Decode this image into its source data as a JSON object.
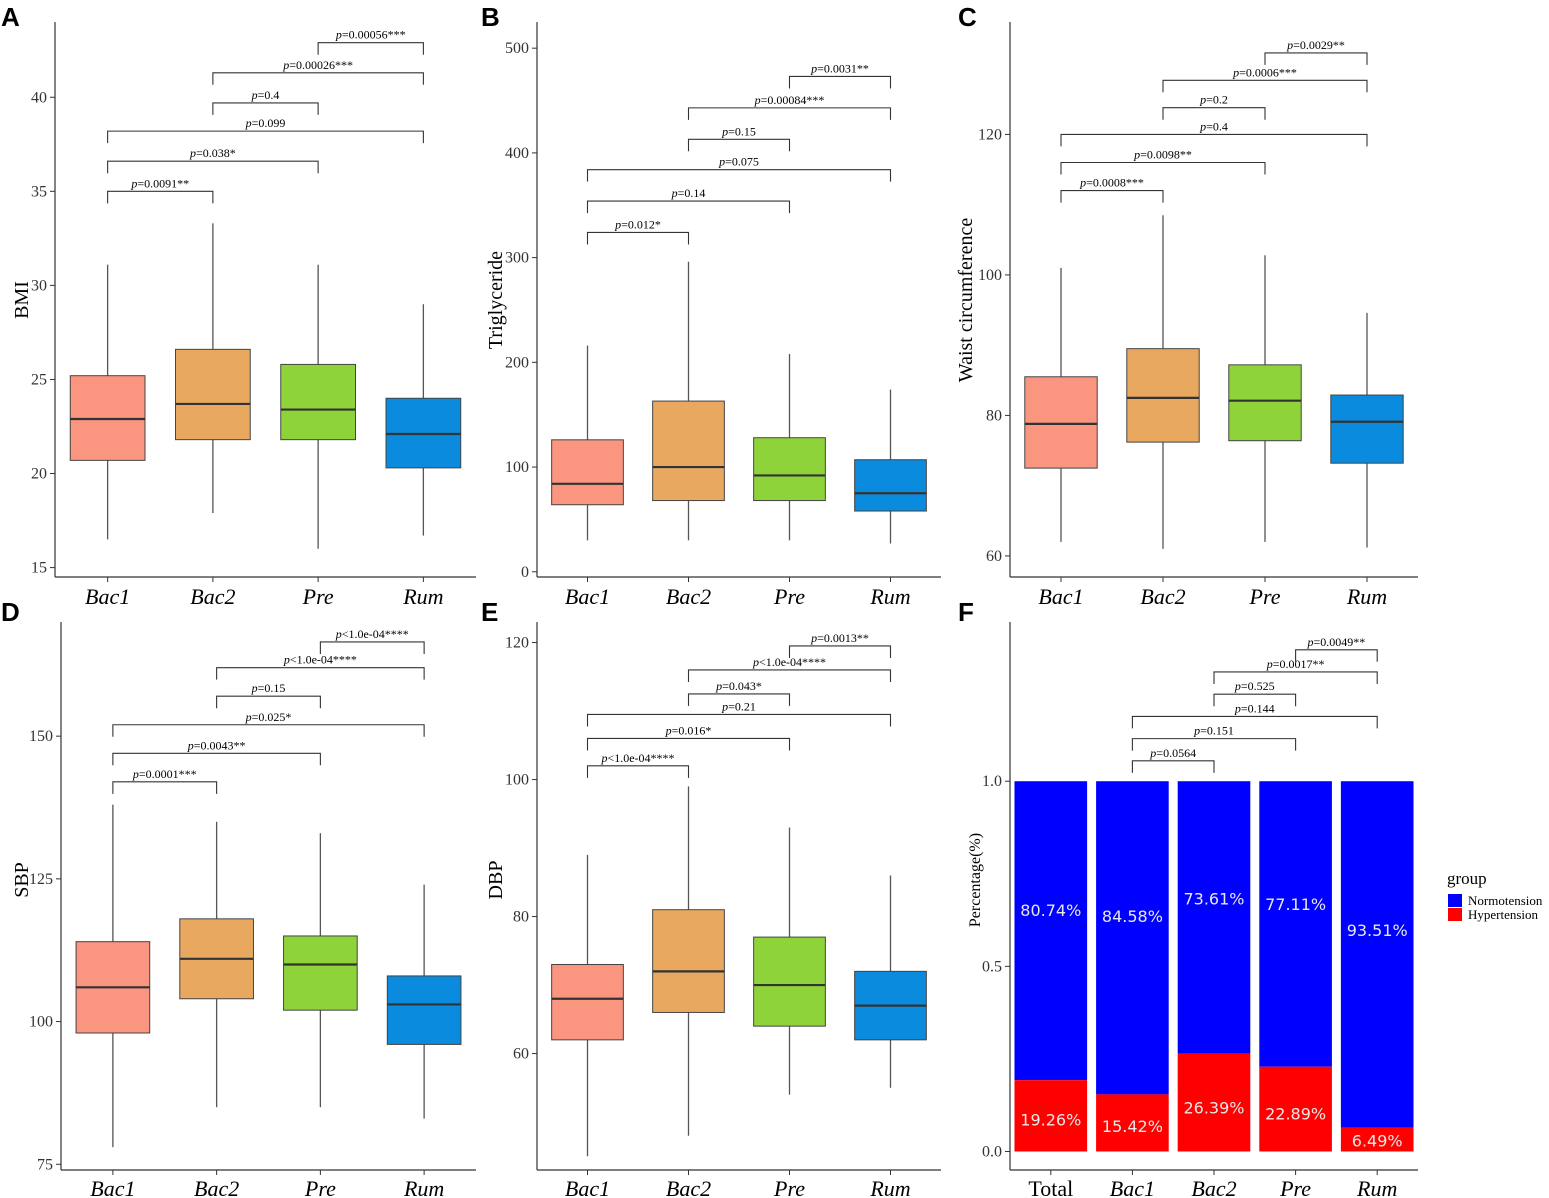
{
  "chart_data": [
    {
      "panel": "A",
      "type": "box",
      "ylabel": "BMI",
      "ylim": [
        14.5,
        44
      ],
      "yticks": [
        15,
        20,
        25,
        30,
        35,
        40
      ],
      "categories": [
        "Bac1",
        "Bac2",
        "Pre",
        "Rum"
      ],
      "colors": [
        "#FA9580",
        "#E8A860",
        "#8FD33A",
        "#0A8BDD"
      ],
      "boxes": [
        {
          "min": 16.5,
          "q1": 20.7,
          "median": 22.9,
          "q3": 25.2,
          "max": 31.1
        },
        {
          "min": 17.9,
          "q1": 21.8,
          "median": 23.7,
          "q3": 26.6,
          "max": 33.3
        },
        {
          "min": 16.0,
          "q1": 21.8,
          "median": 23.4,
          "q3": 25.8,
          "max": 31.1
        },
        {
          "min": 16.7,
          "q1": 20.3,
          "median": 22.1,
          "q3": 24.0,
          "max": 29.0
        }
      ],
      "comparisons": [
        {
          "a": 0,
          "b": 1,
          "y": 35.0,
          "label": "=0.0091**"
        },
        {
          "a": 0,
          "b": 2,
          "y": 36.6,
          "label": "=0.038*"
        },
        {
          "a": 0,
          "b": 3,
          "y": 38.2,
          "label": "=0.099"
        },
        {
          "a": 1,
          "b": 2,
          "y": 39.7,
          "label": "=0.4"
        },
        {
          "a": 1,
          "b": 3,
          "y": 41.3,
          "label": "=0.00026***"
        },
        {
          "a": 2,
          "b": 3,
          "y": 42.9,
          "label": "=0.00056***"
        }
      ]
    },
    {
      "panel": "B",
      "type": "box",
      "ylabel": "Triglyceride",
      "ylim": [
        -5,
        525
      ],
      "yticks": [
        0,
        100,
        200,
        300,
        400,
        500
      ],
      "categories": [
        "Bac1",
        "Bac2",
        "Pre",
        "Rum"
      ],
      "colors": [
        "#FA9580",
        "#E8A860",
        "#8FD33A",
        "#0A8BDD"
      ],
      "boxes": [
        {
          "min": 30,
          "q1": 64,
          "median": 84,
          "q3": 126,
          "max": 216
        },
        {
          "min": 30,
          "q1": 68,
          "median": 100,
          "q3": 163,
          "max": 296
        },
        {
          "min": 30,
          "q1": 68,
          "median": 92,
          "q3": 128,
          "max": 208
        },
        {
          "min": 27,
          "q1": 58,
          "median": 75,
          "q3": 107,
          "max": 174
        }
      ],
      "comparisons": [
        {
          "a": 0,
          "b": 1,
          "y": 324,
          "label": "=0.012*"
        },
        {
          "a": 0,
          "b": 2,
          "y": 354,
          "label": "=0.14"
        },
        {
          "a": 0,
          "b": 3,
          "y": 384,
          "label": "=0.075"
        },
        {
          "a": 1,
          "b": 2,
          "y": 413,
          "label": "=0.15"
        },
        {
          "a": 1,
          "b": 3,
          "y": 443,
          "label": "=0.00084***"
        },
        {
          "a": 2,
          "b": 3,
          "y": 473,
          "label": "=0.0031**"
        }
      ]
    },
    {
      "panel": "C",
      "type": "box",
      "ylabel": "Waist circumference",
      "ylim": [
        57,
        136
      ],
      "yticks": [
        60,
        80,
        100,
        120
      ],
      "categories": [
        "Bac1",
        "Bac2",
        "Pre",
        "Rum"
      ],
      "colors": [
        "#FA9580",
        "#E8A860",
        "#8FD33A",
        "#0A8BDD"
      ],
      "boxes": [
        {
          "min": 62,
          "q1": 72.5,
          "median": 78.8,
          "q3": 85.5,
          "max": 101
        },
        {
          "min": 61,
          "q1": 76.2,
          "median": 82.5,
          "q3": 89.5,
          "max": 108.5
        },
        {
          "min": 62,
          "q1": 76.4,
          "median": 82.1,
          "q3": 87.2,
          "max": 102.8
        },
        {
          "min": 61.2,
          "q1": 73.2,
          "median": 79.1,
          "q3": 82.9,
          "max": 94.6
        }
      ],
      "comparisons": [
        {
          "a": 0,
          "b": 1,
          "y": 112.0,
          "label": "=0.0008***"
        },
        {
          "a": 0,
          "b": 2,
          "y": 116.0,
          "label": "=0.0098**"
        },
        {
          "a": 0,
          "b": 3,
          "y": 120.0,
          "label": "=0.4"
        },
        {
          "a": 1,
          "b": 2,
          "y": 123.8,
          "label": "=0.2"
        },
        {
          "a": 1,
          "b": 3,
          "y": 127.7,
          "label": "=0.0006***"
        },
        {
          "a": 2,
          "b": 3,
          "y": 131.6,
          "label": "=0.0029**"
        }
      ]
    },
    {
      "panel": "D",
      "type": "box",
      "ylabel": "SBP",
      "ylim": [
        74,
        170
      ],
      "yticks": [
        75,
        100,
        125,
        150
      ],
      "categories": [
        "Bac1",
        "Bac2",
        "Pre",
        "Rum"
      ],
      "colors": [
        "#FA9580",
        "#E8A860",
        "#8FD33A",
        "#0A8BDD"
      ],
      "boxes": [
        {
          "min": 78,
          "q1": 98,
          "median": 106,
          "q3": 114,
          "max": 138
        },
        {
          "min": 85,
          "q1": 104,
          "median": 111,
          "q3": 118,
          "max": 135
        },
        {
          "min": 85,
          "q1": 102,
          "median": 110,
          "q3": 115,
          "max": 133
        },
        {
          "min": 83,
          "q1": 96,
          "median": 103,
          "q3": 108,
          "max": 124
        }
      ],
      "comparisons": [
        {
          "a": 0,
          "b": 1,
          "y": 142.0,
          "label": "=0.0001***"
        },
        {
          "a": 0,
          "b": 2,
          "y": 147.0,
          "label": "=0.0043**"
        },
        {
          "a": 0,
          "b": 3,
          "y": 152.0,
          "label": "=0.025*"
        },
        {
          "a": 1,
          "b": 2,
          "y": 157.0,
          "label": "=0.15"
        },
        {
          "a": 1,
          "b": 3,
          "y": 162.0,
          "label": "<1.0e-04****"
        },
        {
          "a": 2,
          "b": 3,
          "y": 166.5,
          "label": "<1.0e-04****"
        }
      ]
    },
    {
      "panel": "E",
      "type": "box",
      "ylabel": "DBP",
      "ylim": [
        43,
        123
      ],
      "yticks": [
        60,
        80,
        100,
        120
      ],
      "categories": [
        "Bac1",
        "Bac2",
        "Pre",
        "Rum"
      ],
      "colors": [
        "#FA9580",
        "#E8A860",
        "#8FD33A",
        "#0A8BDD"
      ],
      "boxes": [
        {
          "min": 45,
          "q1": 62,
          "median": 68,
          "q3": 73,
          "max": 89
        },
        {
          "min": 48,
          "q1": 66,
          "median": 72,
          "q3": 81,
          "max": 99
        },
        {
          "min": 54,
          "q1": 64,
          "median": 70,
          "q3": 77,
          "max": 93
        },
        {
          "min": 55,
          "q1": 62,
          "median": 67,
          "q3": 72,
          "max": 86
        }
      ],
      "comparisons": [
        {
          "a": 0,
          "b": 1,
          "y": 102.0,
          "label": "<1.0e-04****"
        },
        {
          "a": 0,
          "b": 2,
          "y": 106.0,
          "label": "=0.016*"
        },
        {
          "a": 0,
          "b": 3,
          "y": 109.5,
          "label": "=0.21"
        },
        {
          "a": 1,
          "b": 2,
          "y": 112.5,
          "label": "=0.043*"
        },
        {
          "a": 1,
          "b": 3,
          "y": 116.0,
          "label": "<1.0e-04****"
        },
        {
          "a": 2,
          "b": 3,
          "y": 119.5,
          "label": "=0.0013**"
        }
      ]
    },
    {
      "panel": "F",
      "type": "stacked-bar",
      "ylabel": "Percentage(%)",
      "ylim": [
        -0.05,
        1.43
      ],
      "yticks": [
        0.0,
        0.5,
        1.0
      ],
      "ytick_labels": [
        "0.0",
        "0.5",
        "1.0"
      ],
      "categories": [
        "Total",
        "Bac1",
        "Bac2",
        "Pre",
        "Rum"
      ],
      "series": [
        {
          "name": "Normotension",
          "color": "#0000FF",
          "values": [
            0.8074,
            0.8458,
            0.7361,
            0.7711,
            0.9351
          ],
          "labels": [
            "80.74%",
            "84.58%",
            "73.61%",
            "77.11%",
            "93.51%"
          ]
        },
        {
          "name": "Hypertension",
          "color": "#FF0000",
          "values": [
            0.1926,
            0.1542,
            0.2639,
            0.2289,
            0.0649
          ],
          "labels": [
            "19.26%",
            "15.42%",
            "26.39%",
            "22.89%",
            "6.49%"
          ]
        }
      ],
      "legend_title": "group",
      "legend_position": "right",
      "comparisons": [
        {
          "a": 1,
          "b": 2,
          "y": 1.055,
          "label": "=0.0564"
        },
        {
          "a": 1,
          "b": 3,
          "y": 1.115,
          "label": "=0.151"
        },
        {
          "a": 1,
          "b": 4,
          "y": 1.175,
          "label": "=0.144"
        },
        {
          "a": 2,
          "b": 3,
          "y": 1.235,
          "label": "=0.525"
        },
        {
          "a": 2,
          "b": 4,
          "y": 1.295,
          "label": "=0.0017**"
        },
        {
          "a": 3,
          "b": 4,
          "y": 1.355,
          "label": "=0.0049**"
        }
      ]
    }
  ]
}
